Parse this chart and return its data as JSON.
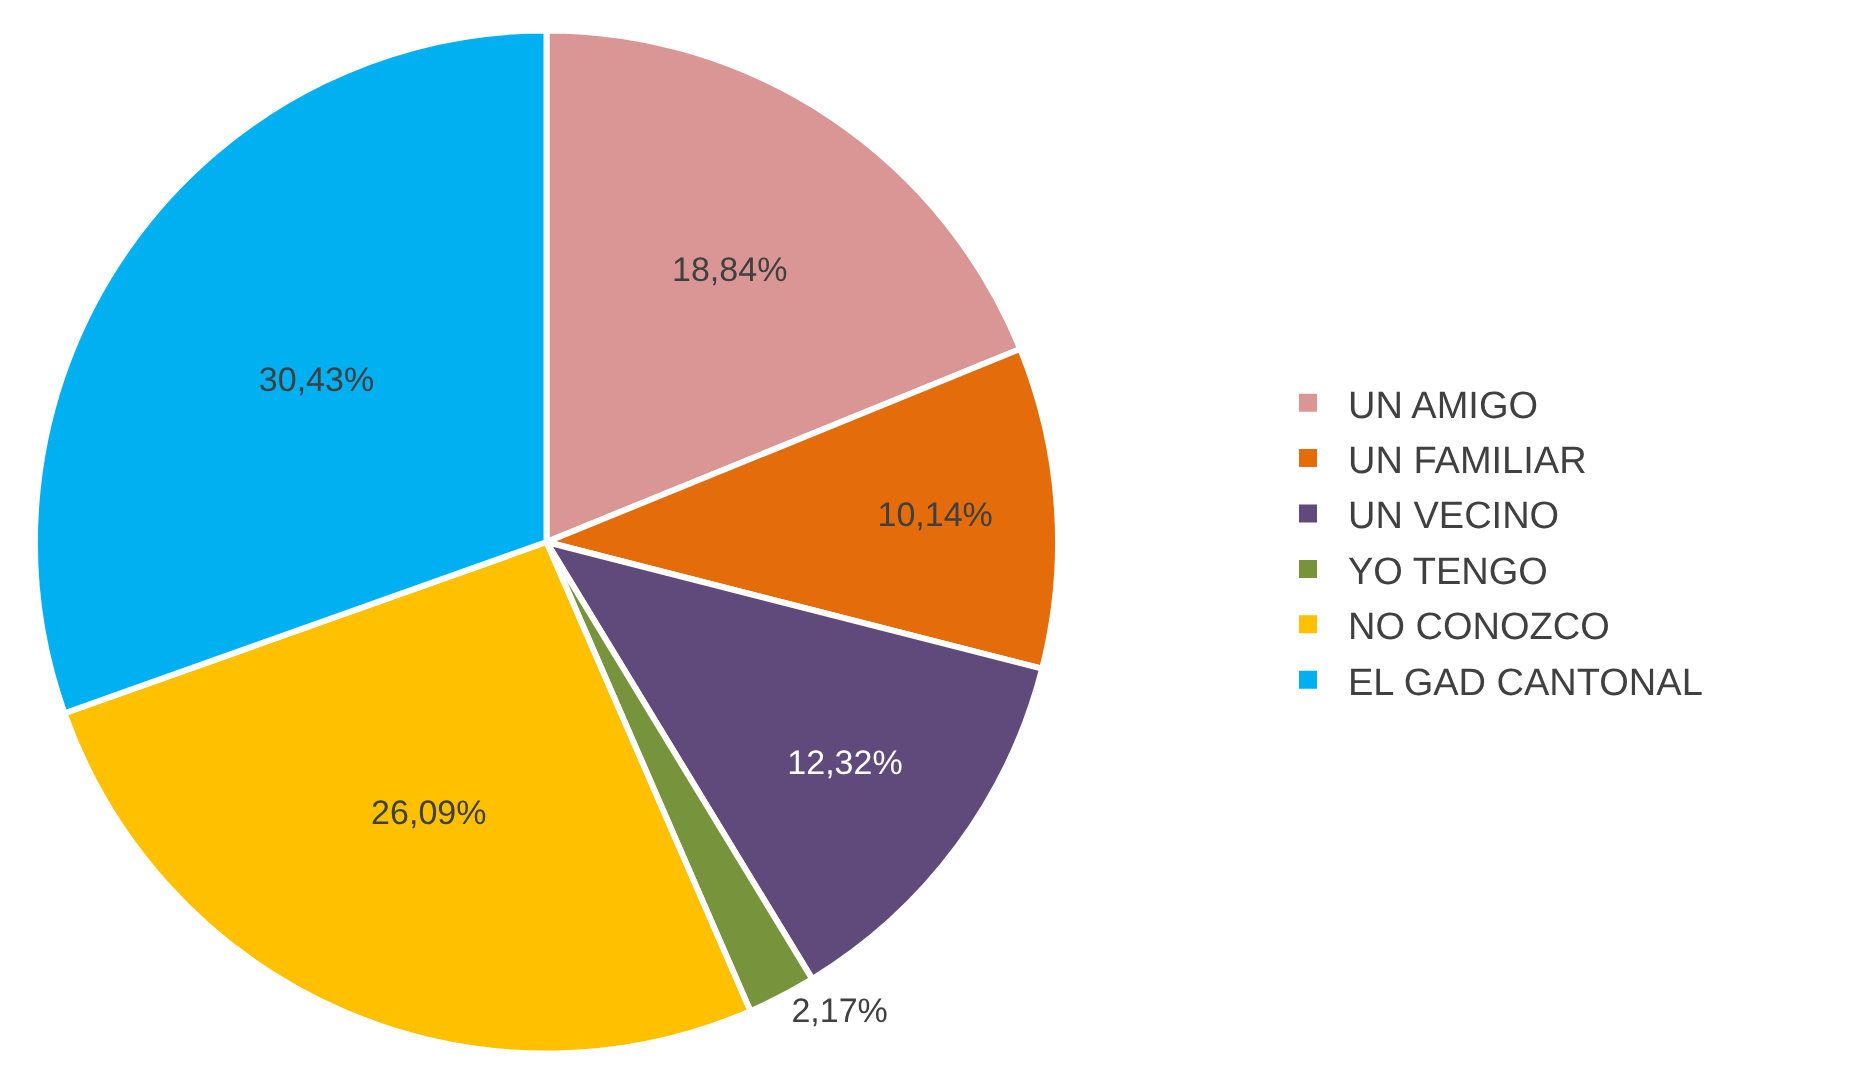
{
  "chart_data": {
    "type": "pie",
    "categories": [
      "UN AMIGO",
      "UN FAMILIAR",
      "UN VECINO",
      "YO TENGO",
      "NO CONOZCO",
      "EL GAD CANTONAL"
    ],
    "values": [
      18.84,
      10.14,
      12.32,
      2.17,
      26.09,
      30.43
    ],
    "colors": [
      "#d99694",
      "#e46c0a",
      "#604a7b",
      "#77933c",
      "#ffc000",
      "#00b0f0"
    ],
    "value_labels": [
      "18,84%",
      "10,14%",
      "12,32%",
      "2,17%",
      "26,09%",
      "30,43%"
    ],
    "legend": "right"
  }
}
